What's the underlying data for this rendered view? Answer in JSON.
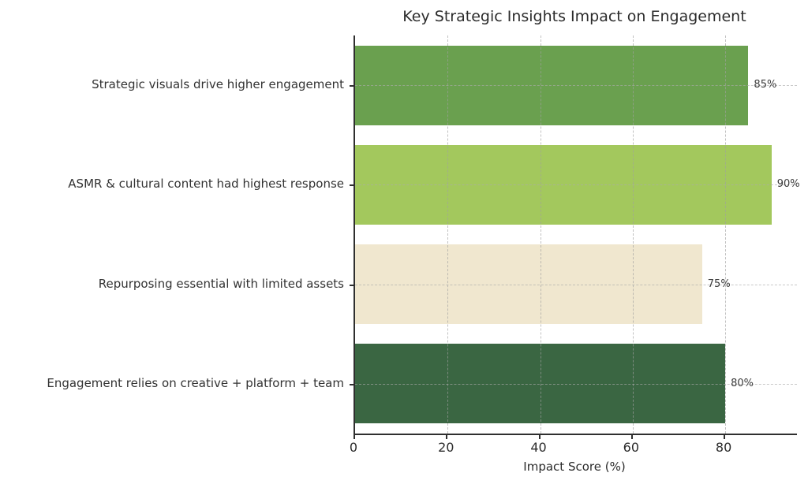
{
  "title": "Key Strategic Insights Impact on Engagement",
  "chart_data": {
    "type": "bar",
    "orientation": "horizontal",
    "title": "Key Strategic Insights Impact on Engagement",
    "xlabel": "Impact Score (%)",
    "ylabel": "",
    "categories": [
      "Strategic visuals drive higher engagement",
      "ASMR & cultural content had highest response",
      "Repurposing essential with limited assets",
      "Engagement relies on creative + platform + team"
    ],
    "values": [
      85,
      90,
      75,
      80
    ],
    "value_labels": [
      "85%",
      "90%",
      "75%",
      "80%"
    ],
    "bar_colors": [
      "#6aa04f",
      "#a3c85d",
      "#f0e7cf",
      "#3a6642"
    ],
    "xlim": [
      0,
      95.5
    ],
    "xticks": [
      0,
      20,
      40,
      60,
      80
    ],
    "grid": "dashed-both-axes",
    "legend": "none"
  },
  "colors": {
    "background": "#ffffff",
    "axis": "#2f2f2f",
    "text": "#2b2b2b",
    "grid": "#aaaaaa"
  }
}
